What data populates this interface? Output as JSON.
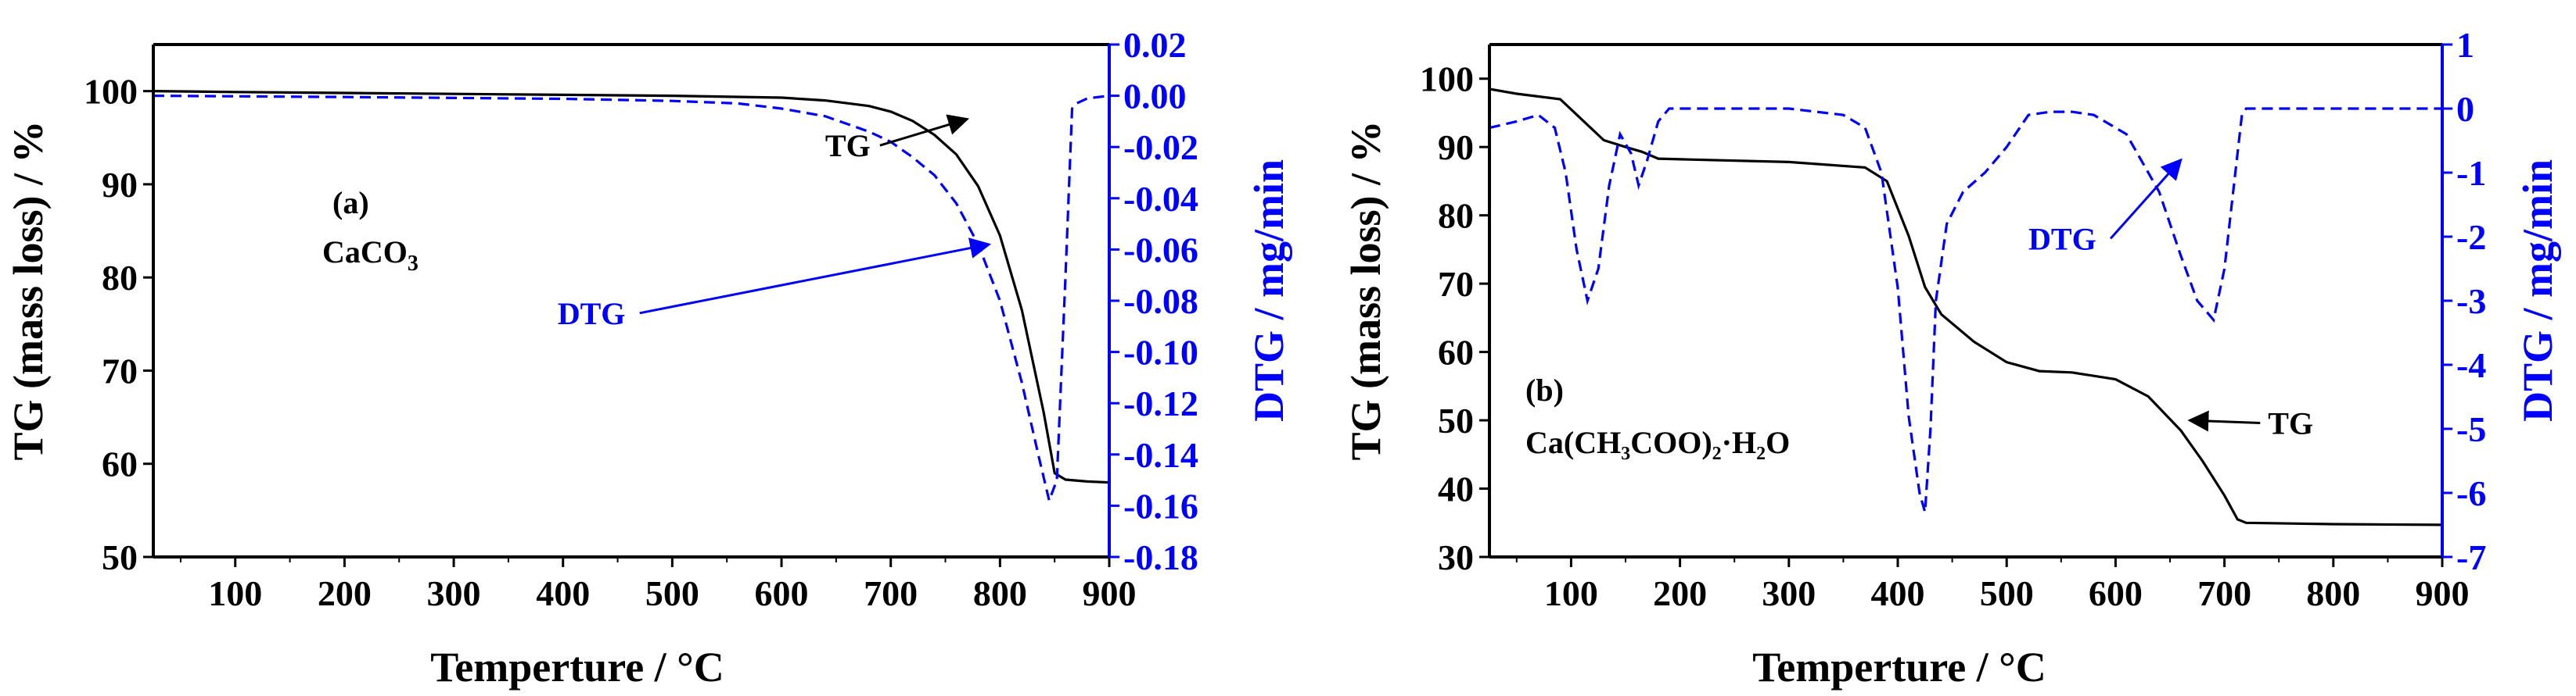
{
  "colors": {
    "tg": "#000000",
    "dtg": "#0000ff",
    "frame": "#000000"
  },
  "chart_data": [
    {
      "type": "line",
      "panel": "a",
      "label": "(a)",
      "sample": "CaCO",
      "sample_sub": "3",
      "xlabel": "Temperture / °C",
      "ylabel": "TG (mass loss) / %",
      "y2label": "DTG / mg/min",
      "xlim": [
        25,
        900
      ],
      "ylim": [
        50,
        105
      ],
      "y2lim": [
        -0.18,
        0.02
      ],
      "xticks": [
        100,
        200,
        300,
        400,
        500,
        600,
        700,
        800,
        900
      ],
      "yticks": [
        50,
        60,
        70,
        80,
        90,
        100
      ],
      "y2ticks": [
        0.02,
        0.0,
        -0.02,
        -0.04,
        -0.06,
        -0.08,
        -0.1,
        -0.12,
        -0.14,
        -0.16,
        -0.18
      ],
      "xtick_labels": [
        "100",
        "200",
        "300",
        "400",
        "500",
        "600",
        "700",
        "800",
        "900"
      ],
      "ytick_labels": [
        "50",
        "60",
        "70",
        "80",
        "90",
        "100"
      ],
      "y2tick_labels": [
        "0.02",
        "0.00",
        "-0.02",
        "-0.04",
        "-0.06",
        "-0.08",
        "-0.10",
        "-0.12",
        "-0.14",
        "-0.16",
        "-0.18"
      ],
      "series": [
        {
          "name": "TG",
          "axis": "left",
          "style": "solid",
          "x": [
            25,
            100,
            200,
            300,
            400,
            500,
            600,
            640,
            680,
            700,
            720,
            740,
            760,
            780,
            800,
            820,
            840,
            850,
            860,
            880,
            900
          ],
          "y": [
            100,
            99.9,
            99.8,
            99.7,
            99.6,
            99.5,
            99.3,
            99.0,
            98.4,
            97.8,
            96.8,
            95.3,
            93.2,
            89.8,
            84.5,
            76.5,
            65.5,
            59.0,
            58.3,
            58.1,
            58.0
          ]
        },
        {
          "name": "DTG",
          "axis": "right",
          "style": "dashed",
          "x": [
            25,
            200,
            400,
            500,
            560,
            600,
            640,
            680,
            700,
            720,
            740,
            760,
            780,
            800,
            820,
            835,
            845,
            852,
            860,
            866,
            870,
            880,
            900
          ],
          "y": [
            0.0,
            -0.0005,
            -0.0012,
            -0.002,
            -0.003,
            -0.005,
            -0.008,
            -0.014,
            -0.018,
            -0.024,
            -0.031,
            -0.042,
            -0.058,
            -0.08,
            -0.112,
            -0.14,
            -0.158,
            -0.15,
            -0.07,
            -0.005,
            -0.003,
            -0.001,
            0.0
          ]
        }
      ],
      "annotations": [
        {
          "text": "TG",
          "tx": 640,
          "ty": 93,
          "target_x": 770,
          "target_y": 97
        },
        {
          "text": "DTG",
          "tx": 395,
          "ty": 75,
          "target_x": 790,
          "target_y": -0.058
        }
      ]
    },
    {
      "type": "line",
      "panel": "b",
      "label": "(b)",
      "sample": "Ca(CH₃COO)₂·H₂O",
      "xlabel": "Temperture / °C",
      "ylabel": "TG (mass loss) / %",
      "y2label": "DTG / mg/min",
      "xlim": [
        25,
        900
      ],
      "ylim": [
        30,
        105
      ],
      "y2lim": [
        -7,
        1
      ],
      "xticks": [
        100,
        200,
        300,
        400,
        500,
        600,
        700,
        800,
        900
      ],
      "yticks": [
        30,
        40,
        50,
        60,
        70,
        80,
        90,
        100
      ],
      "y2ticks": [
        1,
        0,
        -1,
        -2,
        -3,
        -4,
        -5,
        -6,
        -7
      ],
      "xtick_labels": [
        "100",
        "200",
        "300",
        "400",
        "500",
        "600",
        "700",
        "800",
        "900"
      ],
      "ytick_labels": [
        "30",
        "40",
        "50",
        "60",
        "70",
        "80",
        "90",
        "100"
      ],
      "y2tick_labels": [
        "1",
        "0",
        "-1",
        "-2",
        "-3",
        "-4",
        "-5",
        "-6",
        "-7"
      ],
      "series": [
        {
          "name": "TG",
          "axis": "left",
          "style": "solid",
          "x": [
            25,
            50,
            90,
            110,
            130,
            150,
            165,
            180,
            200,
            300,
            370,
            390,
            410,
            425,
            440,
            470,
            500,
            530,
            560,
            600,
            630,
            660,
            680,
            700,
            712,
            720,
            800,
            900
          ],
          "y": [
            98.5,
            97.8,
            97.0,
            94.0,
            91.0,
            90.0,
            89.3,
            88.3,
            88.2,
            87.8,
            87.0,
            85.0,
            77.0,
            69.5,
            65.5,
            61.5,
            58.5,
            57.2,
            57.0,
            56.0,
            53.5,
            48.5,
            44.0,
            39.0,
            35.5,
            35.0,
            34.8,
            34.7
          ]
        },
        {
          "name": "DTG",
          "axis": "right",
          "style": "dashed",
          "x": [
            25,
            50,
            70,
            85,
            95,
            105,
            115,
            125,
            135,
            145,
            155,
            162,
            170,
            180,
            190,
            200,
            300,
            350,
            370,
            385,
            400,
            410,
            420,
            425,
            430,
            435,
            445,
            460,
            480,
            500,
            520,
            540,
            560,
            580,
            610,
            640,
            660,
            675,
            690,
            700,
            710,
            716,
            720,
            740,
            800,
            900
          ],
          "y": [
            -0.3,
            -0.2,
            -0.1,
            -0.3,
            -1.0,
            -2.2,
            -3.0,
            -2.5,
            -1.2,
            -0.4,
            -0.7,
            -1.2,
            -0.8,
            -0.2,
            0.0,
            0.0,
            0.0,
            -0.1,
            -0.3,
            -1.0,
            -2.8,
            -4.8,
            -6.0,
            -6.3,
            -5.0,
            -3.0,
            -1.8,
            -1.3,
            -1.0,
            -0.6,
            -0.1,
            -0.05,
            -0.05,
            -0.1,
            -0.4,
            -1.3,
            -2.3,
            -3.0,
            -3.3,
            -2.5,
            -1.0,
            -0.1,
            0.0,
            0.0,
            0.0,
            0.0
          ]
        }
      ],
      "annotations": [
        {
          "text": "TG",
          "tx": 740,
          "ty": 48,
          "target_x": 668,
          "target_y": 50
        },
        {
          "text": "DTG",
          "tx": 520,
          "ty": 75,
          "target_x": 660,
          "target_y": -0.8
        }
      ]
    }
  ]
}
